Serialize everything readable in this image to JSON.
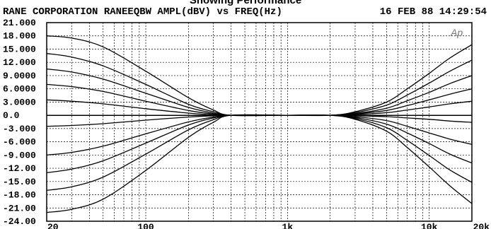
{
  "caption": "Showing Performance",
  "chart_data": {
    "type": "line",
    "title": "RANE CORPORATION RANEEQBW AMPL(dBV) vs FREQ(Hz)",
    "timestamp": "16 FEB 88 14:29:54",
    "watermark": "Ap",
    "x_scale": "log",
    "xlim": [
      20,
      20000
    ],
    "ylim": [
      -24,
      21
    ],
    "grid": true,
    "x_ticks": [
      {
        "value": 20,
        "label": "20"
      },
      {
        "value": 100,
        "label": "100"
      },
      {
        "value": 1000,
        "label": "1k"
      },
      {
        "value": 10000,
        "label": "10k"
      },
      {
        "value": 20000,
        "label": "20k"
      }
    ],
    "y_ticks": [
      {
        "value": 21,
        "label": "21.000"
      },
      {
        "value": 18,
        "label": "18.000"
      },
      {
        "value": 15,
        "label": "15.000"
      },
      {
        "value": 12,
        "label": "12.000"
      },
      {
        "value": 9,
        "label": "9.0000"
      },
      {
        "value": 6,
        "label": "6.0000"
      },
      {
        "value": 3,
        "label": "3.0000"
      },
      {
        "value": 0,
        "label": "0.0"
      },
      {
        "value": -3,
        "label": "-3.000"
      },
      {
        "value": -6,
        "label": "-6.000"
      },
      {
        "value": -9,
        "label": "-9.000"
      },
      {
        "value": -12,
        "label": "-12.00"
      },
      {
        "value": -15,
        "label": "-15.00"
      },
      {
        "value": -18,
        "label": "-18.00"
      },
      {
        "value": -21,
        "label": "-21.00"
      },
      {
        "value": -24,
        "label": "-24.00"
      }
    ],
    "series": [
      {
        "x": [
          20,
          30,
          50,
          100,
          200,
          300,
          400,
          1000,
          2000,
          4000,
          7000,
          10000,
          14000,
          20000
        ],
        "values": [
          18,
          17.5,
          15.5,
          10,
          4,
          1.2,
          0,
          0,
          0,
          0,
          0,
          0,
          0,
          0
        ]
      },
      {
        "x": [
          20,
          30,
          50,
          100,
          200,
          300,
          400,
          1000,
          2000,
          4000,
          7000,
          10000,
          14000,
          20000
        ],
        "values": [
          14,
          13.2,
          11.2,
          7,
          2.5,
          0.8,
          0,
          0,
          0,
          0,
          0,
          0,
          0,
          0
        ]
      },
      {
        "x": [
          20,
          30,
          50,
          100,
          200,
          300,
          400,
          1000,
          2000,
          4000,
          7000,
          10000,
          14000,
          20000
        ],
        "values": [
          10.5,
          9.8,
          8.2,
          5,
          1.8,
          0.5,
          0,
          0,
          0,
          0,
          0,
          0,
          0,
          0
        ]
      },
      {
        "x": [
          20,
          30,
          50,
          100,
          200,
          300,
          400,
          1000,
          2000,
          4000,
          7000,
          10000,
          14000,
          20000
        ],
        "values": [
          7,
          6.5,
          5.4,
          3.2,
          1.1,
          0.3,
          0,
          0,
          0,
          0,
          0,
          0,
          0,
          0
        ]
      },
      {
        "x": [
          20,
          30,
          50,
          100,
          200,
          300,
          400,
          1000,
          2000,
          4000,
          7000,
          10000,
          14000,
          20000
        ],
        "values": [
          3.5,
          3.2,
          2.6,
          1.5,
          0.5,
          0.1,
          0,
          0,
          0,
          0,
          0,
          0,
          0,
          0
        ]
      },
      {
        "x": [
          20,
          30,
          50,
          100,
          200,
          300,
          400,
          1000,
          2000,
          4000,
          7000,
          10000,
          14000,
          20000
        ],
        "values": [
          -2.5,
          -2.3,
          -1.9,
          -1.1,
          -0.4,
          -0.1,
          0,
          0,
          0,
          0,
          0,
          0,
          0,
          0
        ]
      },
      {
        "x": [
          20,
          30,
          50,
          100,
          200,
          300,
          400,
          1000,
          2000,
          4000,
          7000,
          10000,
          14000,
          20000
        ],
        "values": [
          -9,
          -8.4,
          -7,
          -4.2,
          -1.5,
          -0.4,
          0,
          0,
          0,
          0,
          0,
          0,
          0,
          0
        ]
      },
      {
        "x": [
          20,
          30,
          50,
          100,
          200,
          300,
          400,
          1000,
          2000,
          4000,
          7000,
          10000,
          14000,
          20000
        ],
        "values": [
          -13,
          -12.2,
          -10.3,
          -6.3,
          -2.2,
          -0.6,
          0,
          0,
          0,
          0,
          0,
          0,
          0,
          0
        ]
      },
      {
        "x": [
          20,
          30,
          50,
          100,
          200,
          300,
          400,
          1000,
          2000,
          4000,
          7000,
          10000,
          14000,
          20000
        ],
        "values": [
          -17,
          -16.2,
          -14,
          -8.8,
          -3.3,
          -1,
          0,
          0,
          0,
          0,
          0,
          0,
          0,
          0
        ]
      },
      {
        "x": [
          20,
          30,
          50,
          100,
          200,
          300,
          400,
          1000,
          2000,
          4000,
          7000,
          10000,
          14000,
          20000
        ],
        "values": [
          -22,
          -21.3,
          -19,
          -12.5,
          -5,
          -1.6,
          0,
          0,
          0,
          0,
          0,
          0,
          0,
          0
        ]
      },
      {
        "x": [
          20,
          50,
          100,
          300,
          600,
          1000,
          2000,
          3000,
          5000,
          7000,
          10000,
          14000,
          20000
        ],
        "values": [
          0,
          0,
          0,
          0,
          0,
          0,
          0,
          0.8,
          3,
          6,
          9.5,
          13,
          16
        ]
      },
      {
        "x": [
          20,
          50,
          100,
          300,
          600,
          1000,
          2000,
          3000,
          5000,
          7000,
          10000,
          14000,
          20000
        ],
        "values": [
          0,
          0,
          0,
          0,
          0,
          0,
          0,
          0.6,
          2.3,
          4.6,
          7.3,
          10,
          12.5
        ]
      },
      {
        "x": [
          20,
          50,
          100,
          300,
          600,
          1000,
          2000,
          3000,
          5000,
          7000,
          10000,
          14000,
          20000
        ],
        "values": [
          0,
          0,
          0,
          0,
          0,
          0,
          0,
          0.4,
          1.6,
          3.3,
          5.2,
          7.2,
          9
        ]
      },
      {
        "x": [
          20,
          50,
          100,
          300,
          600,
          1000,
          2000,
          3000,
          5000,
          7000,
          10000,
          14000,
          20000
        ],
        "values": [
          0,
          0,
          0,
          0,
          0,
          0,
          0,
          0.3,
          1.1,
          2.2,
          3.5,
          4.8,
          6
        ]
      },
      {
        "x": [
          20,
          50,
          100,
          300,
          600,
          1000,
          2000,
          3000,
          5000,
          7000,
          10000,
          14000,
          20000
        ],
        "values": [
          0,
          0,
          0,
          0,
          0,
          0,
          0,
          0.15,
          0.6,
          1.2,
          1.9,
          2.6,
          3.2
        ]
      },
      {
        "x": [
          20,
          50,
          100,
          300,
          600,
          1000,
          2000,
          3000,
          5000,
          7000,
          10000,
          14000,
          20000
        ],
        "values": [
          0,
          0,
          0,
          0,
          0,
          0,
          0,
          -0.1,
          -0.3,
          -0.6,
          -0.9,
          -1.3,
          -1.6
        ]
      },
      {
        "x": [
          20,
          50,
          100,
          300,
          600,
          1000,
          2000,
          3000,
          5000,
          7000,
          10000,
          14000,
          20000
        ],
        "values": [
          0,
          0,
          0,
          0,
          0,
          0,
          0,
          -0.3,
          -1.2,
          -2.5,
          -4,
          -5.4,
          -6.6
        ]
      },
      {
        "x": [
          20,
          50,
          100,
          300,
          600,
          1000,
          2000,
          3000,
          5000,
          7000,
          10000,
          14000,
          20000
        ],
        "values": [
          0,
          0,
          0,
          0,
          0,
          0,
          0,
          -0.5,
          -2,
          -4,
          -6.4,
          -8.8,
          -10.8
        ]
      },
      {
        "x": [
          20,
          50,
          100,
          300,
          600,
          1000,
          2000,
          3000,
          5000,
          7000,
          10000,
          14000,
          20000
        ],
        "values": [
          0,
          0,
          0,
          0,
          0,
          0,
          0,
          -0.7,
          -2.8,
          -5.7,
          -9.1,
          -12.4,
          -15.2
        ]
      },
      {
        "x": [
          20,
          50,
          100,
          300,
          600,
          1000,
          2000,
          3000,
          5000,
          7000,
          10000,
          14000,
          20000
        ],
        "values": [
          0,
          0,
          0,
          0,
          0,
          0,
          0,
          -0.9,
          -3.6,
          -7.3,
          -11.7,
          -16,
          -20
        ]
      }
    ]
  }
}
